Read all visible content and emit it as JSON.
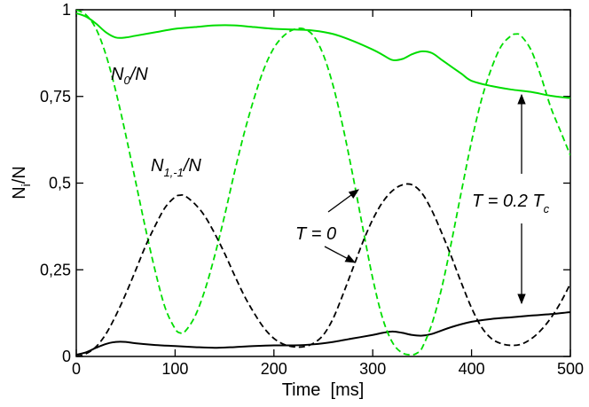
{
  "chart_data": {
    "type": "line",
    "title": "",
    "xlabel": "Time  [ms]",
    "ylabel": "N_i/N",
    "xlim": [
      0,
      500
    ],
    "ylim": [
      0,
      1
    ],
    "x_ticks": [
      0,
      100,
      200,
      300,
      400,
      500
    ],
    "x_tick_labels": [
      "0",
      "100",
      "200",
      "300",
      "400",
      "500"
    ],
    "y_ticks": [
      0,
      0.25,
      0.5,
      0.75,
      1
    ],
    "y_tick_labels": [
      "0",
      "0,25",
      "0,5",
      "0,75",
      "1"
    ],
    "grid": false,
    "series": [
      {
        "name": "N0/N, T = 0.2 Tc",
        "color": "#00dd00",
        "dashed": false,
        "points": [
          [
            0,
            0.99
          ],
          [
            10,
            0.98
          ],
          [
            20,
            0.96
          ],
          [
            30,
            0.935
          ],
          [
            40,
            0.92
          ],
          [
            50,
            0.92
          ],
          [
            60,
            0.925
          ],
          [
            80,
            0.935
          ],
          [
            100,
            0.945
          ],
          [
            120,
            0.95
          ],
          [
            140,
            0.955
          ],
          [
            160,
            0.955
          ],
          [
            180,
            0.95
          ],
          [
            200,
            0.945
          ],
          [
            220,
            0.943
          ],
          [
            240,
            0.94
          ],
          [
            260,
            0.93
          ],
          [
            280,
            0.91
          ],
          [
            300,
            0.885
          ],
          [
            310,
            0.87
          ],
          [
            320,
            0.855
          ],
          [
            330,
            0.858
          ],
          [
            340,
            0.872
          ],
          [
            350,
            0.88
          ],
          [
            360,
            0.875
          ],
          [
            370,
            0.855
          ],
          [
            380,
            0.835
          ],
          [
            390,
            0.815
          ],
          [
            400,
            0.795
          ],
          [
            420,
            0.78
          ],
          [
            440,
            0.77
          ],
          [
            460,
            0.763
          ],
          [
            480,
            0.752
          ],
          [
            500,
            0.745
          ]
        ]
      },
      {
        "name": "N1,-1/N, T = 0.2 Tc",
        "color": "#000000",
        "dashed": false,
        "points": [
          [
            0,
            0.005
          ],
          [
            10,
            0.012
          ],
          [
            20,
            0.025
          ],
          [
            30,
            0.036
          ],
          [
            40,
            0.042
          ],
          [
            50,
            0.042
          ],
          [
            60,
            0.038
          ],
          [
            80,
            0.033
          ],
          [
            100,
            0.03
          ],
          [
            120,
            0.027
          ],
          [
            140,
            0.025
          ],
          [
            160,
            0.027
          ],
          [
            180,
            0.03
          ],
          [
            200,
            0.032
          ],
          [
            220,
            0.032
          ],
          [
            240,
            0.035
          ],
          [
            260,
            0.042
          ],
          [
            280,
            0.052
          ],
          [
            300,
            0.062
          ],
          [
            310,
            0.068
          ],
          [
            320,
            0.072
          ],
          [
            330,
            0.068
          ],
          [
            340,
            0.062
          ],
          [
            350,
            0.06
          ],
          [
            360,
            0.065
          ],
          [
            380,
            0.085
          ],
          [
            400,
            0.1
          ],
          [
            420,
            0.108
          ],
          [
            440,
            0.113
          ],
          [
            460,
            0.118
          ],
          [
            480,
            0.122
          ],
          [
            500,
            0.128
          ]
        ]
      },
      {
        "name": "N0/N, T = 0",
        "color": "#00dd00",
        "dashed": true,
        "points": [
          [
            0,
            1
          ],
          [
            10,
            0.985
          ],
          [
            20,
            0.945
          ],
          [
            30,
            0.87
          ],
          [
            40,
            0.765
          ],
          [
            50,
            0.64
          ],
          [
            60,
            0.505
          ],
          [
            70,
            0.37
          ],
          [
            80,
            0.245
          ],
          [
            90,
            0.14
          ],
          [
            100,
            0.08
          ],
          [
            105,
            0.068
          ],
          [
            110,
            0.072
          ],
          [
            120,
            0.115
          ],
          [
            130,
            0.19
          ],
          [
            140,
            0.29
          ],
          [
            150,
            0.405
          ],
          [
            160,
            0.53
          ],
          [
            170,
            0.645
          ],
          [
            180,
            0.745
          ],
          [
            190,
            0.83
          ],
          [
            200,
            0.89
          ],
          [
            210,
            0.925
          ],
          [
            220,
            0.943
          ],
          [
            230,
            0.945
          ],
          [
            240,
            0.925
          ],
          [
            250,
            0.87
          ],
          [
            260,
            0.78
          ],
          [
            270,
            0.66
          ],
          [
            280,
            0.52
          ],
          [
            290,
            0.37
          ],
          [
            300,
            0.225
          ],
          [
            310,
            0.11
          ],
          [
            320,
            0.04
          ],
          [
            330,
            0.01
          ],
          [
            340,
            0.005
          ],
          [
            345,
            0.01
          ],
          [
            350,
            0.025
          ],
          [
            360,
            0.095
          ],
          [
            370,
            0.2
          ],
          [
            380,
            0.335
          ],
          [
            390,
            0.48
          ],
          [
            400,
            0.62
          ],
          [
            410,
            0.74
          ],
          [
            420,
            0.83
          ],
          [
            430,
            0.895
          ],
          [
            440,
            0.925
          ],
          [
            445,
            0.93
          ],
          [
            450,
            0.925
          ],
          [
            460,
            0.885
          ],
          [
            470,
            0.81
          ],
          [
            480,
            0.72
          ],
          [
            490,
            0.65
          ],
          [
            500,
            0.58
          ]
        ]
      },
      {
        "name": "N1,-1/N, T = 0",
        "color": "#000000",
        "dashed": true,
        "points": [
          [
            0,
            0
          ],
          [
            10,
            0.008
          ],
          [
            20,
            0.028
          ],
          [
            30,
            0.065
          ],
          [
            40,
            0.118
          ],
          [
            50,
            0.18
          ],
          [
            60,
            0.248
          ],
          [
            70,
            0.318
          ],
          [
            80,
            0.378
          ],
          [
            90,
            0.43
          ],
          [
            100,
            0.46
          ],
          [
            105,
            0.465
          ],
          [
            110,
            0.463
          ],
          [
            120,
            0.44
          ],
          [
            130,
            0.405
          ],
          [
            140,
            0.355
          ],
          [
            150,
            0.298
          ],
          [
            160,
            0.235
          ],
          [
            170,
            0.175
          ],
          [
            180,
            0.125
          ],
          [
            190,
            0.082
          ],
          [
            200,
            0.052
          ],
          [
            210,
            0.035
          ],
          [
            220,
            0.028
          ],
          [
            230,
            0.028
          ],
          [
            240,
            0.038
          ],
          [
            250,
            0.062
          ],
          [
            260,
            0.11
          ],
          [
            270,
            0.18
          ],
          [
            280,
            0.255
          ],
          [
            290,
            0.33
          ],
          [
            300,
            0.395
          ],
          [
            310,
            0.445
          ],
          [
            320,
            0.478
          ],
          [
            330,
            0.495
          ],
          [
            340,
            0.495
          ],
          [
            350,
            0.47
          ],
          [
            360,
            0.42
          ],
          [
            370,
            0.355
          ],
          [
            380,
            0.285
          ],
          [
            390,
            0.21
          ],
          [
            400,
            0.14
          ],
          [
            410,
            0.085
          ],
          [
            420,
            0.052
          ],
          [
            430,
            0.037
          ],
          [
            440,
            0.032
          ],
          [
            450,
            0.035
          ],
          [
            460,
            0.05
          ],
          [
            470,
            0.075
          ],
          [
            480,
            0.11
          ],
          [
            490,
            0.155
          ],
          [
            500,
            0.21
          ]
        ]
      }
    ],
    "annotations": {
      "n0_label": "N",
      "n0_sub": "0",
      "n0_tail": "/N",
      "n1_label": "N",
      "n1_sub": "1,-1",
      "n1_tail": "/N",
      "t0_label": "T = 0",
      "tc_label": "T = 0.2 T",
      "tc_sub": "c",
      "ylabel_main": "N",
      "ylabel_sub": "i",
      "ylabel_tail": "/N"
    }
  }
}
